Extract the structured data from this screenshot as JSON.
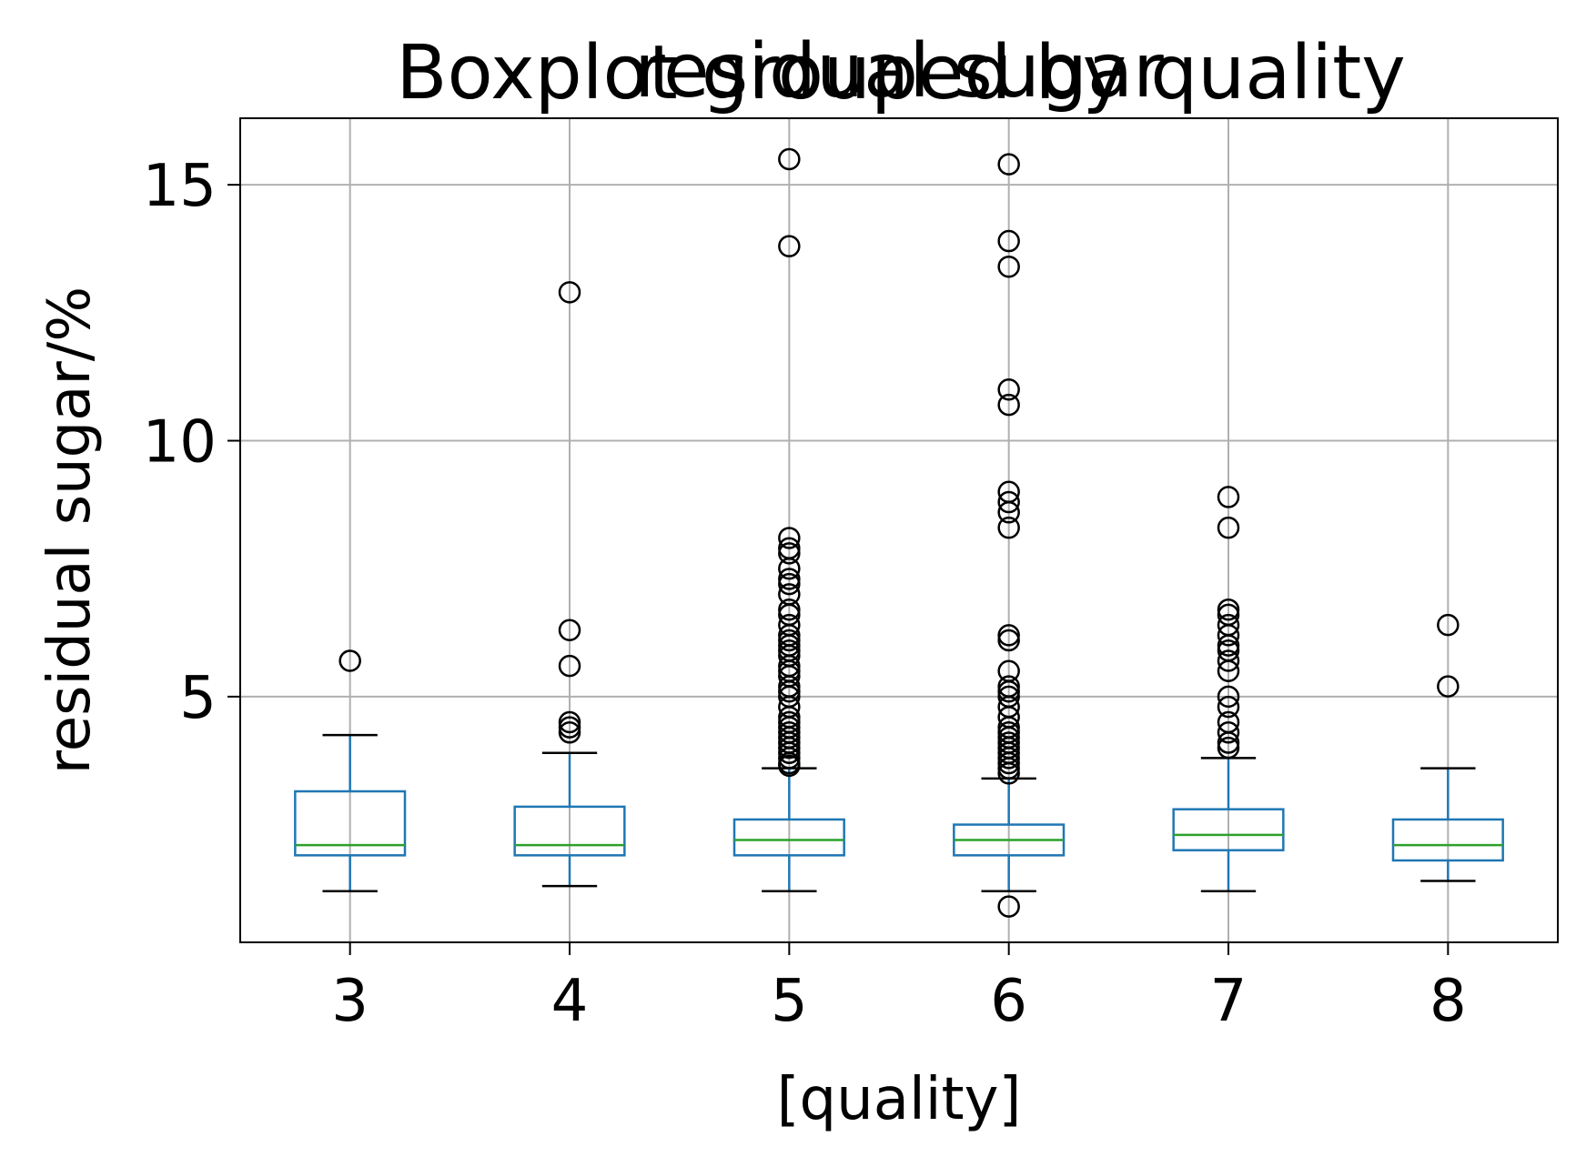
{
  "chart_data": {
    "type": "boxplot",
    "suptitle": "Boxplot grouped by quality",
    "title": "residual sugar",
    "xlabel": "[quality]",
    "ylabel": "residual sugar/%",
    "ylim": [
      0.2,
      16.3
    ],
    "yticks": [
      5,
      10,
      15
    ],
    "grid": true,
    "colors": {
      "box": "#1f77b4",
      "median": "#2ca02c",
      "whisker": "#1f77b4",
      "cap": "#000000",
      "flier": "#000000",
      "grid": "#b0b0b0"
    },
    "categories": [
      "3",
      "4",
      "5",
      "6",
      "7",
      "8"
    ],
    "boxes": [
      {
        "label": "3",
        "whislo": 1.2,
        "q1": 1.9,
        "med": 2.1,
        "q3": 3.15,
        "whishi": 4.25,
        "fliers": [
          5.7
        ]
      },
      {
        "label": "4",
        "whislo": 1.3,
        "q1": 1.9,
        "med": 2.1,
        "q3": 2.85,
        "whishi": 3.9,
        "fliers": [
          4.3,
          4.4,
          4.5,
          5.6,
          6.3,
          12.9
        ]
      },
      {
        "label": "5",
        "whislo": 1.2,
        "q1": 1.9,
        "med": 2.2,
        "q3": 2.6,
        "whishi": 3.6,
        "fliers": [
          3.65,
          3.7,
          3.8,
          3.9,
          4.0,
          4.1,
          4.2,
          4.3,
          4.4,
          4.5,
          4.6,
          4.8,
          5.0,
          5.1,
          5.2,
          5.4,
          5.5,
          5.6,
          5.8,
          5.9,
          6.0,
          6.1,
          6.2,
          6.4,
          6.6,
          6.7,
          7.0,
          7.2,
          7.3,
          7.5,
          7.8,
          7.9,
          8.1,
          13.8,
          15.5
        ]
      },
      {
        "label": "6",
        "whislo": 1.2,
        "q1": 1.9,
        "med": 2.2,
        "q3": 2.5,
        "whishi": 3.4,
        "fliers": [
          0.9,
          3.5,
          3.6,
          3.7,
          3.8,
          3.9,
          4.0,
          4.1,
          4.2,
          4.3,
          4.4,
          4.6,
          4.8,
          5.0,
          5.1,
          5.2,
          5.5,
          6.1,
          6.2,
          8.3,
          8.6,
          8.8,
          9.0,
          10.7,
          11.0,
          13.4,
          13.9,
          15.4
        ]
      },
      {
        "label": "7",
        "whislo": 1.2,
        "q1": 2.0,
        "med": 2.3,
        "q3": 2.8,
        "whishi": 3.8,
        "fliers": [
          4.0,
          4.1,
          4.3,
          4.5,
          4.8,
          5.0,
          5.5,
          5.7,
          5.9,
          6.0,
          6.2,
          6.4,
          6.6,
          6.7,
          8.3,
          8.9
        ]
      },
      {
        "label": "8",
        "whislo": 1.4,
        "q1": 1.8,
        "med": 2.1,
        "q3": 2.6,
        "whishi": 3.6,
        "fliers": [
          5.2,
          6.4
        ]
      }
    ]
  }
}
